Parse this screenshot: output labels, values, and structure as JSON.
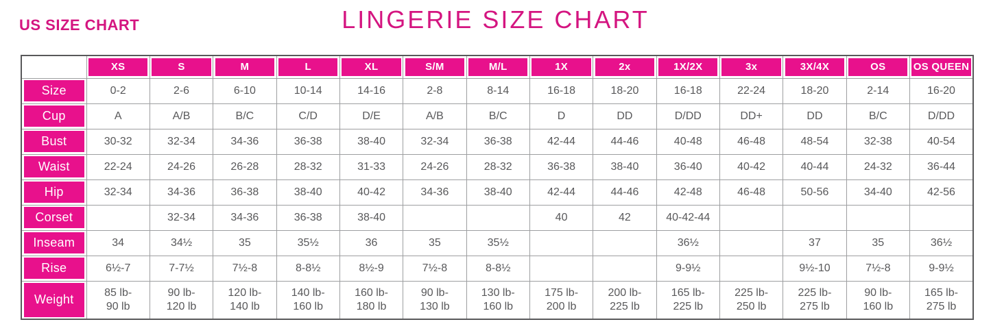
{
  "header": {
    "us_label": "US SIZE CHART",
    "title": "LINGERIE SIZE CHART"
  },
  "colors": {
    "pink": "#e8118c",
    "title_pink": "#d41580",
    "cell_text": "#58585a",
    "grid_line": "#9d9ea0"
  },
  "chart_data": {
    "type": "table",
    "columns": [
      "XS",
      "S",
      "M",
      "L",
      "XL",
      "S/M",
      "M/L",
      "1X",
      "2x",
      "1X/2X",
      "3x",
      "3X/4X",
      "OS",
      "OS QUEEN"
    ],
    "rows": [
      {
        "label": "Size",
        "values": [
          "0-2",
          "2-6",
          "6-10",
          "10-14",
          "14-16",
          "2-8",
          "8-14",
          "16-18",
          "18-20",
          "16-18",
          "22-24",
          "18-20",
          "2-14",
          "16-20"
        ]
      },
      {
        "label": "Cup",
        "values": [
          "A",
          "A/B",
          "B/C",
          "C/D",
          "D/E",
          "A/B",
          "B/C",
          "D",
          "DD",
          "D/DD",
          "DD+",
          "DD",
          "B/C",
          "D/DD"
        ]
      },
      {
        "label": "Bust",
        "values": [
          "30-32",
          "32-34",
          "34-36",
          "36-38",
          "38-40",
          "32-34",
          "36-38",
          "42-44",
          "44-46",
          "40-48",
          "46-48",
          "48-54",
          "32-38",
          "40-54"
        ]
      },
      {
        "label": "Waist",
        "values": [
          "22-24",
          "24-26",
          "26-28",
          "28-32",
          "31-33",
          "24-26",
          "28-32",
          "36-38",
          "38-40",
          "36-40",
          "40-42",
          "40-44",
          "24-32",
          "36-44"
        ]
      },
      {
        "label": "Hip",
        "values": [
          "32-34",
          "34-36",
          "36-38",
          "38-40",
          "40-42",
          "34-36",
          "38-40",
          "42-44",
          "44-46",
          "42-48",
          "46-48",
          "50-56",
          "34-40",
          "42-56"
        ]
      },
      {
        "label": "Corset",
        "values": [
          "",
          "32-34",
          "34-36",
          "36-38",
          "38-40",
          "",
          "",
          "40",
          "42",
          "40-42-44",
          "",
          "",
          "",
          ""
        ]
      },
      {
        "label": "Inseam",
        "values": [
          "34",
          "34½",
          "35",
          "35½",
          "36",
          "35",
          "35½",
          "",
          "",
          "36½",
          "",
          "37",
          "35",
          "36½"
        ]
      },
      {
        "label": "Rise",
        "values": [
          "6½-7",
          "7-7½",
          "7½-8",
          "8-8½",
          "8½-9",
          "7½-8",
          "8-8½",
          "",
          "",
          "9-9½",
          "",
          "9½-10",
          "7½-8",
          "9-9½"
        ]
      },
      {
        "label": "Weight",
        "values": [
          "85 lb-\n90 lb",
          "90 lb-\n120 lb",
          "120 lb-\n140 lb",
          "140 lb-\n160 lb",
          "160 lb-\n180 lb",
          "90 lb-\n130 lb",
          "130 lb-\n160 lb",
          "175 lb-\n200 lb",
          "200 lb-\n225 lb",
          "165 lb-\n225 lb",
          "225 lb-\n250 lb",
          "225 lb-\n275 lb",
          "90 lb-\n160 lb",
          "165 lb-\n275 lb"
        ]
      }
    ]
  }
}
